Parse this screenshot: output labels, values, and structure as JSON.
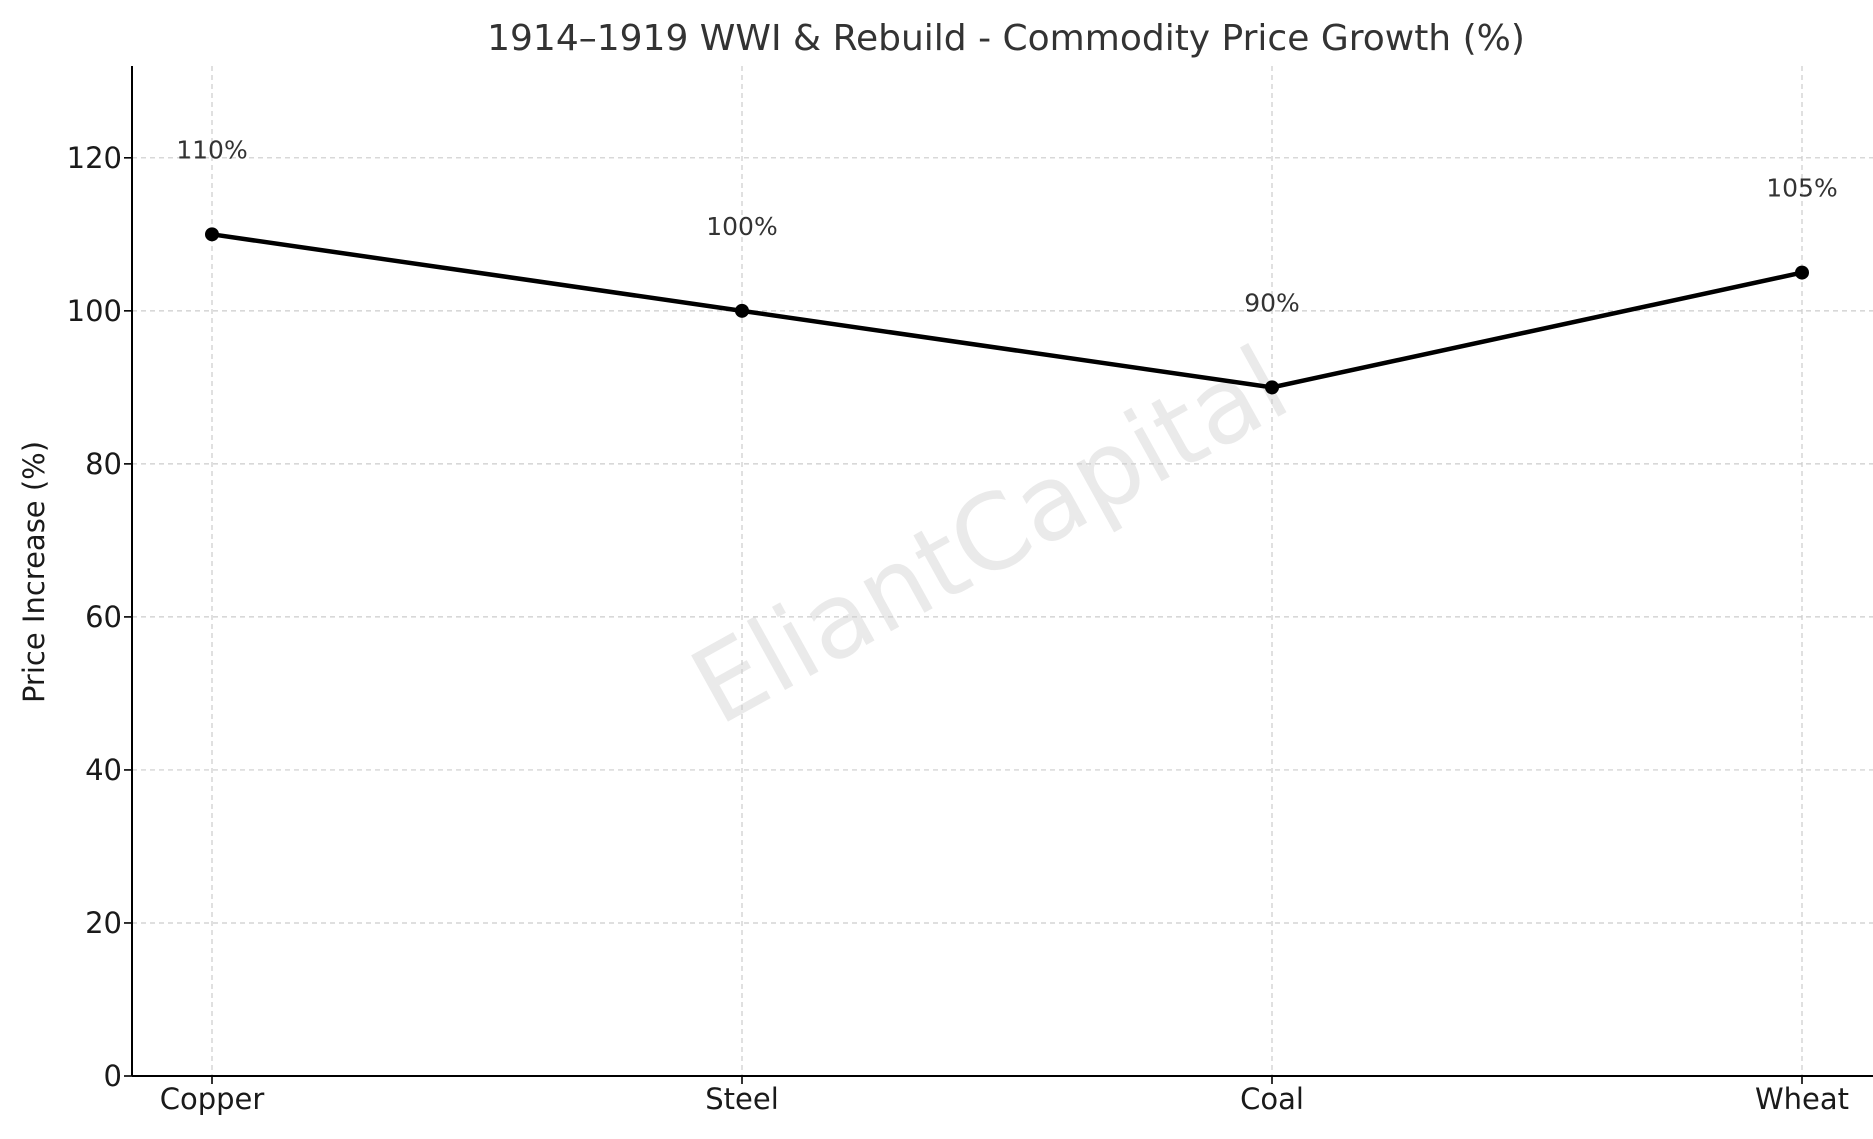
{
  "chart_data": {
    "type": "line",
    "title": "1914–1919 WWI & Rebuild - Commodity Price Growth (%)",
    "xlabel": "",
    "ylabel": "Price Increase (%)",
    "categories": [
      "Copper",
      "Steel",
      "Coal",
      "Wheat"
    ],
    "series": [
      {
        "name": "Price Increase",
        "values": [
          110,
          100,
          90,
          105
        ],
        "color": "#000000"
      }
    ],
    "data_labels": [
      "110%",
      "100%",
      "90%",
      "105%"
    ],
    "ylim": [
      0,
      132
    ],
    "yticks": [
      0,
      20,
      40,
      60,
      80,
      100,
      120
    ],
    "ytick_labels": [
      "0",
      "20",
      "40",
      "60",
      "80",
      "100",
      "120"
    ],
    "grid": true,
    "legend": "none",
    "watermark": "EliantCapital"
  }
}
